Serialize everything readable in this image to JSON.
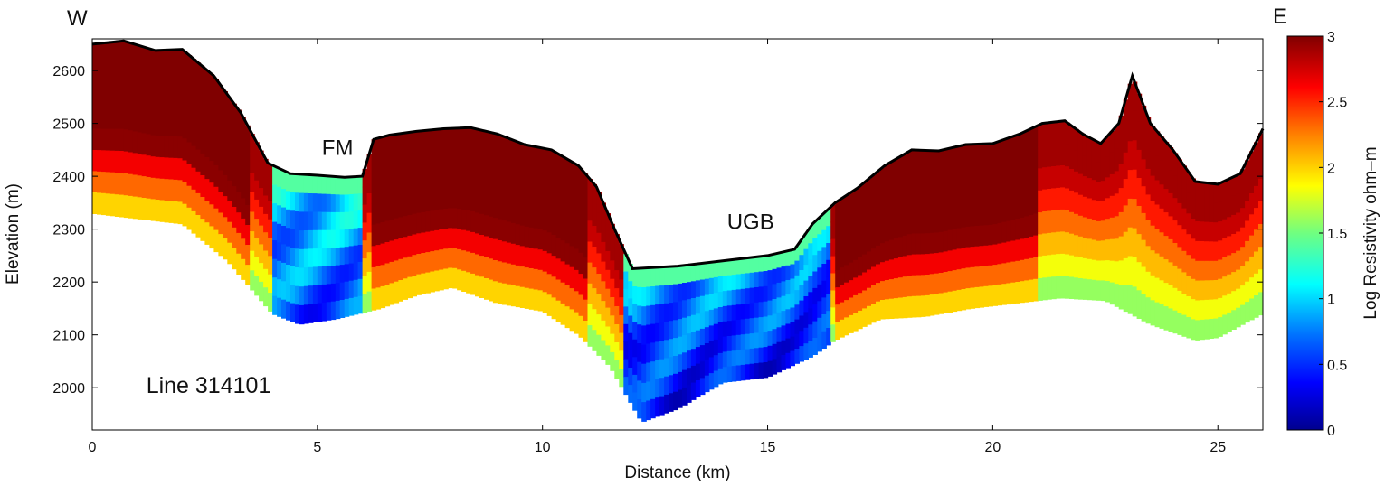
{
  "chart_data": {
    "type": "heatmap",
    "xlabel": "Distance (km)",
    "ylabel": "Elevation (m)",
    "xlim": [
      0,
      26
    ],
    "ylim": [
      1920,
      2660
    ],
    "x_ticks": [
      0,
      5,
      10,
      15,
      20,
      25
    ],
    "y_ticks": [
      2000,
      2100,
      2200,
      2300,
      2400,
      2500,
      2600
    ],
    "corner_labels": {
      "west": "W",
      "east": "E"
    },
    "annotations": [
      {
        "text": "FM",
        "x": 5.1,
        "y": 2440
      },
      {
        "text": "UGB",
        "x": 14.1,
        "y": 2300
      },
      {
        "text": "Line 314101",
        "x": 1.2,
        "y": 1990
      }
    ],
    "colorbar": {
      "label": "Log Resistivity ohm–m",
      "min": 0,
      "max": 3,
      "ticks": [
        0,
        0.5,
        1,
        1.5,
        2,
        2.5,
        3
      ],
      "tick_labels": [
        "0",
        "0.5",
        "1",
        "1.5",
        "2",
        "2.5",
        "3"
      ],
      "colormap": "jet"
    },
    "surface_profile": {
      "x": [
        0,
        0.7,
        1.4,
        2.0,
        2.7,
        3.3,
        3.9,
        4.4,
        5.0,
        5.6,
        6.0,
        6.25,
        6.6,
        7.2,
        7.8,
        8.4,
        9.0,
        9.6,
        10.2,
        10.8,
        11.2,
        11.6,
        12.0,
        13.0,
        14.0,
        15.0,
        15.6,
        16.0,
        16.5,
        17.0,
        17.6,
        18.2,
        18.8,
        19.4,
        20.0,
        20.6,
        21.1,
        21.6,
        22.0,
        22.4,
        22.8,
        23.1,
        23.5,
        24.0,
        24.5,
        25.0,
        25.5,
        26.0
      ],
      "elevation": [
        2650,
        2656,
        2638,
        2640,
        2590,
        2520,
        2425,
        2405,
        2402,
        2398,
        2400,
        2470,
        2478,
        2485,
        2490,
        2492,
        2480,
        2460,
        2450,
        2420,
        2380,
        2300,
        2225,
        2230,
        2240,
        2250,
        2262,
        2310,
        2350,
        2378,
        2420,
        2450,
        2448,
        2460,
        2462,
        2480,
        2500,
        2505,
        2480,
        2462,
        2500,
        2590,
        2500,
        2450,
        2390,
        2385,
        2405,
        2490
      ]
    },
    "depth_of_investigation": {
      "x": [
        0,
        1,
        2,
        3,
        4,
        4.6,
        5.4,
        6.4,
        7.2,
        8.0,
        9.0,
        10.0,
        10.8,
        11.5,
        12.2,
        13.0,
        14.0,
        15.0,
        16.0,
        16.5,
        17.5,
        18.5,
        19.5,
        20.5,
        21.5,
        22.5,
        23.5,
        24.5,
        25.0,
        26.0
      ],
      "elevation": [
        2330,
        2320,
        2310,
        2240,
        2140,
        2120,
        2130,
        2150,
        2175,
        2190,
        2160,
        2145,
        2100,
        2040,
        1935,
        1960,
        2010,
        2020,
        2060,
        2090,
        2130,
        2135,
        2150,
        2160,
        2170,
        2165,
        2120,
        2090,
        2095,
        2140
      ]
    },
    "resistivity_regions": [
      {
        "name": "west high-resistivity block",
        "x_range": [
          0,
          3.5
        ],
        "log_resistivity": 3.0
      },
      {
        "name": "FM conductive zone",
        "x_range": [
          4,
          6
        ],
        "log_resistivity": 1.0
      },
      {
        "name": "central resistive block",
        "x_range": [
          6.2,
          11
        ],
        "log_resistivity": 2.9
      },
      {
        "name": "UGB conductive basin",
        "x_range": [
          11.8,
          16.4
        ],
        "log_resistivity": 0.8
      },
      {
        "name": "east resistive block",
        "x_range": [
          16.5,
          21
        ],
        "log_resistivity": 2.9
      },
      {
        "name": "far-east mixed zone",
        "x_range": [
          21,
          26
        ],
        "log_resistivity": 2.2
      }
    ]
  }
}
